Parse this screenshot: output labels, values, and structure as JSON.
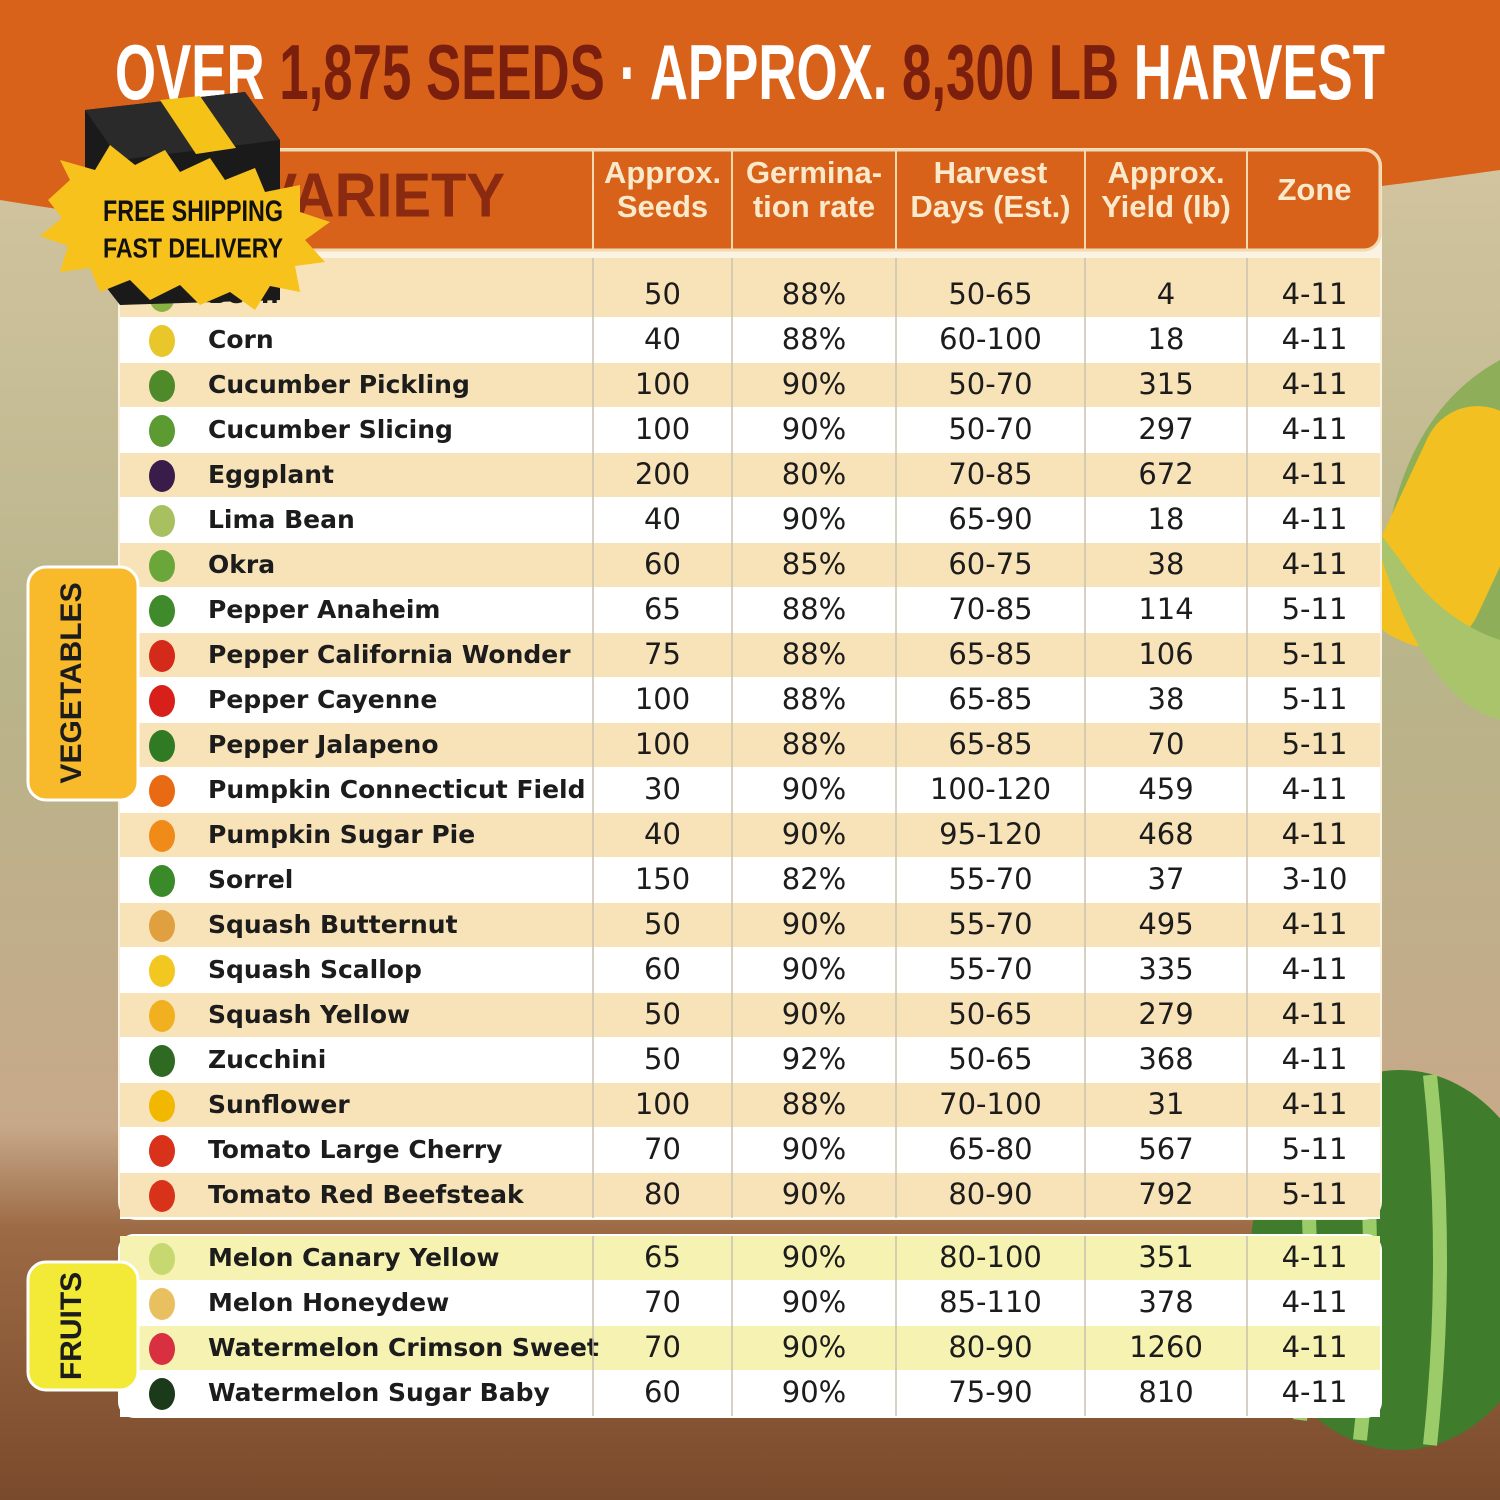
{
  "title": [
    "OVER",
    "1,875 SEEDS",
    "·",
    "APPROX.",
    "8,300 LB",
    "HARVEST"
  ],
  "badge": {
    "line1": "FREE SHIPPING",
    "line2": "FAST DELIVERY"
  },
  "table": {
    "header": [
      "SEED VARIETY",
      [
        "Approx.",
        "Seeds"
      ],
      [
        "Germina-",
        "tion rate"
      ],
      [
        "Harvest",
        "Days (Est.)"
      ],
      [
        "Approx.",
        "Yield (lb)"
      ],
      [
        "Zone"
      ]
    ],
    "vegetables": {
      "label": "VEGETABLES",
      "rows": [
        [
          "Bean",
          "50",
          "88%",
          "50-65",
          "4",
          "4-11"
        ],
        [
          "Corn",
          "40",
          "88%",
          "60-100",
          "18",
          "4-11"
        ],
        [
          "Cucumber Pickling",
          "100",
          "90%",
          "50-70",
          "315",
          "4-11"
        ],
        [
          "Cucumber Slicing",
          "100",
          "90%",
          "50-70",
          "297",
          "4-11"
        ],
        [
          "Eggplant",
          "200",
          "80%",
          "70-85",
          "672",
          "4-11"
        ],
        [
          "Lima Bean",
          "40",
          "90%",
          "65-90",
          "18",
          "4-11"
        ],
        [
          "Okra",
          "60",
          "85%",
          "60-75",
          "38",
          "4-11"
        ],
        [
          "Pepper Anaheim",
          "65",
          "88%",
          "70-85",
          "114",
          "5-11"
        ],
        [
          "Pepper California Wonder",
          "75",
          "88%",
          "65-85",
          "106",
          "5-11"
        ],
        [
          "Pepper Cayenne",
          "100",
          "88%",
          "65-85",
          "38",
          "5-11"
        ],
        [
          "Pepper Jalapeno",
          "100",
          "88%",
          "65-85",
          "70",
          "5-11"
        ],
        [
          "Pumpkin Connecticut Field",
          "30",
          "90%",
          "100-120",
          "459",
          "4-11"
        ],
        [
          "Pumpkin Sugar Pie",
          "40",
          "90%",
          "95-120",
          "468",
          "4-11"
        ],
        [
          "Sorrel",
          "150",
          "82%",
          "55-70",
          "37",
          "3-10"
        ],
        [
          "Squash Butternut",
          "50",
          "90%",
          "55-70",
          "495",
          "4-11"
        ],
        [
          "Squash Scallop",
          "60",
          "90%",
          "55-70",
          "335",
          "4-11"
        ],
        [
          "Squash Yellow",
          "50",
          "90%",
          "50-65",
          "279",
          "4-11"
        ],
        [
          "Zucchini",
          "50",
          "92%",
          "50-65",
          "368",
          "4-11"
        ],
        [
          "Sunflower",
          "100",
          "88%",
          "70-100",
          "31",
          "4-11"
        ],
        [
          "Tomato Large Cherry",
          "70",
          "90%",
          "65-80",
          "567",
          "5-11"
        ],
        [
          "Tomato Red Beefsteak",
          "80",
          "90%",
          "80-90",
          "792",
          "5-11"
        ]
      ]
    },
    "fruits": {
      "label": "FRUITS",
      "rows": [
        [
          "Melon Canary Yellow",
          "65",
          "90%",
          "80-100",
          "351",
          "4-11"
        ],
        [
          "Melon Honeydew",
          "70",
          "90%",
          "85-110",
          "378",
          "4-11"
        ],
        [
          "Watermelon Crimson Sweet",
          "70",
          "90%",
          "80-90",
          "1260",
          "4-11"
        ],
        [
          "Watermelon Sugar Baby",
          "60",
          "90%",
          "75-90",
          "810",
          "4-11"
        ]
      ]
    }
  }
}
